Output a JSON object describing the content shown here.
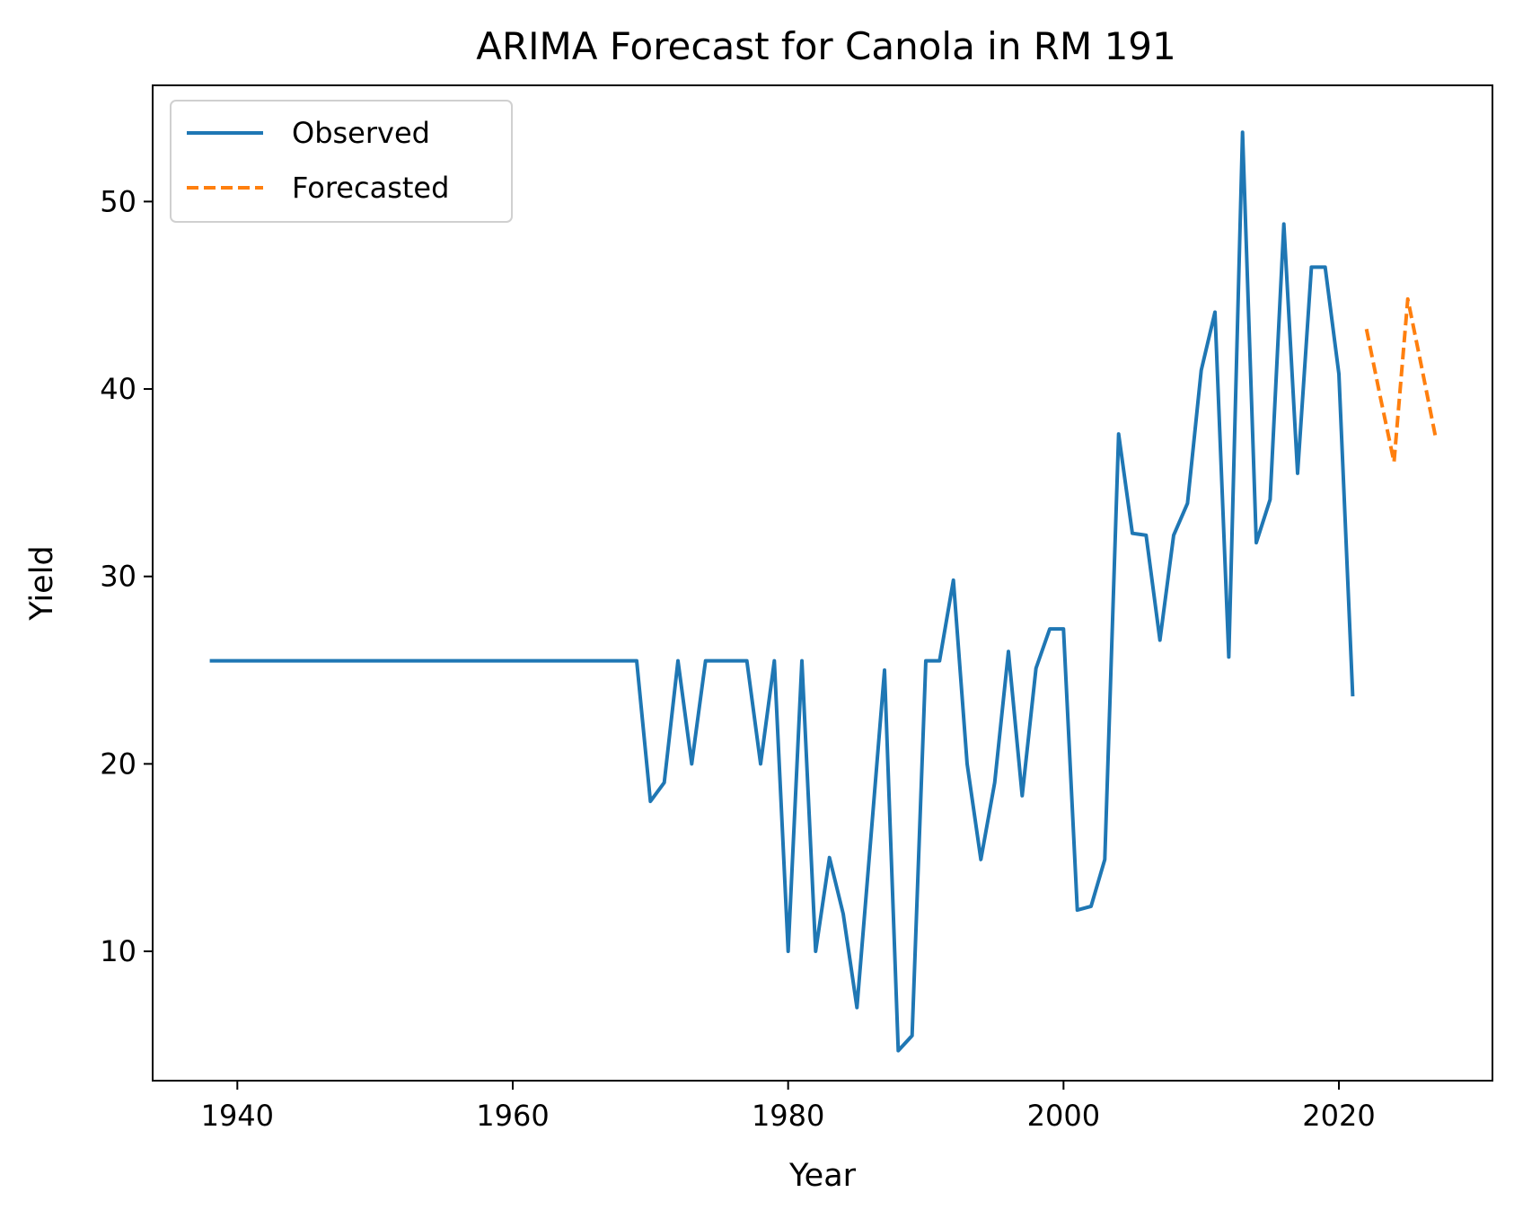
{
  "chart_data": {
    "type": "line",
    "title": "ARIMA Forecast for Canola in RM 191",
    "xlabel": "Year",
    "ylabel": "Yield",
    "xlim": [
      1933.85,
      2031.15
    ],
    "ylim": [
      3.1,
      56.2
    ],
    "xticks": [
      1940,
      1960,
      1980,
      2000,
      2020
    ],
    "yticks": [
      10,
      20,
      30,
      40,
      50
    ],
    "grid": false,
    "legend_position": "upper left",
    "series": [
      {
        "name": "Observed",
        "style": "solid",
        "color": "#1f77b4",
        "x": [
          1938,
          1939,
          1940,
          1941,
          1942,
          1943,
          1944,
          1945,
          1946,
          1947,
          1948,
          1949,
          1950,
          1951,
          1952,
          1953,
          1954,
          1955,
          1956,
          1957,
          1958,
          1959,
          1960,
          1961,
          1962,
          1963,
          1964,
          1965,
          1966,
          1967,
          1968,
          1969,
          1970,
          1971,
          1972,
          1973,
          1974,
          1975,
          1976,
          1977,
          1978,
          1979,
          1980,
          1981,
          1982,
          1983,
          1984,
          1985,
          1986,
          1987,
          1988,
          1989,
          1990,
          1991,
          1992,
          1993,
          1994,
          1995,
          1996,
          1997,
          1998,
          1999,
          2000,
          2001,
          2002,
          2003,
          2004,
          2005,
          2006,
          2007,
          2008,
          2009,
          2010,
          2011,
          2012,
          2013,
          2014,
          2015,
          2016,
          2017,
          2018,
          2019,
          2020,
          2021
        ],
        "y": [
          25.5,
          25.5,
          25.5,
          25.5,
          25.5,
          25.5,
          25.5,
          25.5,
          25.5,
          25.5,
          25.5,
          25.5,
          25.5,
          25.5,
          25.5,
          25.5,
          25.5,
          25.5,
          25.5,
          25.5,
          25.5,
          25.5,
          25.5,
          25.5,
          25.5,
          25.5,
          25.5,
          25.5,
          25.5,
          25.5,
          25.5,
          25.5,
          18.0,
          19.0,
          25.5,
          20.0,
          25.5,
          25.5,
          25.5,
          25.5,
          20.0,
          25.5,
          10.0,
          25.5,
          10.0,
          15.0,
          12.0,
          7.0,
          16.0,
          25.0,
          4.7,
          5.5,
          25.5,
          25.5,
          29.8,
          20.0,
          14.9,
          19.0,
          26.0,
          18.3,
          25.1,
          27.2,
          27.2,
          12.2,
          12.4,
          14.9,
          37.6,
          32.3,
          32.2,
          26.6,
          32.2,
          33.9,
          41.0,
          44.1,
          25.7,
          53.7,
          31.8,
          34.1,
          48.8,
          35.5,
          46.5,
          46.5,
          40.8,
          23.6
        ]
      },
      {
        "name": "Forecasted",
        "style": "dashed",
        "color": "#ff7f0e",
        "x": [
          2022,
          2023,
          2024,
          2025,
          2026,
          2027
        ],
        "y": [
          43.2,
          39.6,
          36.1,
          44.8,
          41.2,
          37.5
        ]
      }
    ]
  }
}
